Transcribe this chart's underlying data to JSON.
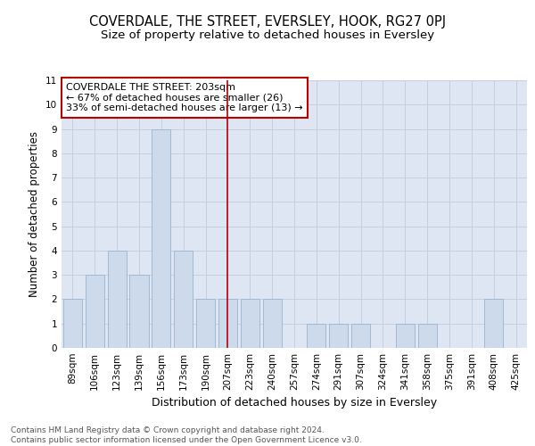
{
  "title": "COVERDALE, THE STREET, EVERSLEY, HOOK, RG27 0PJ",
  "subtitle": "Size of property relative to detached houses in Eversley",
  "xlabel": "Distribution of detached houses by size in Eversley",
  "ylabel": "Number of detached properties",
  "categories": [
    "89sqm",
    "106sqm",
    "123sqm",
    "139sqm",
    "156sqm",
    "173sqm",
    "190sqm",
    "207sqm",
    "223sqm",
    "240sqm",
    "257sqm",
    "274sqm",
    "291sqm",
    "307sqm",
    "324sqm",
    "341sqm",
    "358sqm",
    "375sqm",
    "391sqm",
    "408sqm",
    "425sqm"
  ],
  "values": [
    2,
    3,
    4,
    3,
    9,
    4,
    2,
    2,
    2,
    2,
    0,
    1,
    1,
    1,
    0,
    1,
    1,
    0,
    0,
    2,
    0
  ],
  "bar_color": "#ccdaec",
  "bar_edge_color": "#9ab3cf",
  "vline_x_index": 7,
  "vline_color": "#bb0000",
  "annotation_text": "COVERDALE THE STREET: 203sqm\n← 67% of detached houses are smaller (26)\n33% of semi-detached houses are larger (13) →",
  "annotation_box_facecolor": "#ffffff",
  "annotation_box_edgecolor": "#bb0000",
  "ylim": [
    0,
    11
  ],
  "yticks": [
    0,
    1,
    2,
    3,
    4,
    5,
    6,
    7,
    8,
    9,
    10,
    11
  ],
  "grid_color": "#c5cfe0",
  "background_color": "#dde6f2",
  "footer_text": "Contains HM Land Registry data © Crown copyright and database right 2024.\nContains public sector information licensed under the Open Government Licence v3.0.",
  "title_fontsize": 10.5,
  "subtitle_fontsize": 9.5,
  "xlabel_fontsize": 9,
  "ylabel_fontsize": 8.5,
  "tick_fontsize": 7.5,
  "annotation_fontsize": 8,
  "footer_fontsize": 6.5
}
